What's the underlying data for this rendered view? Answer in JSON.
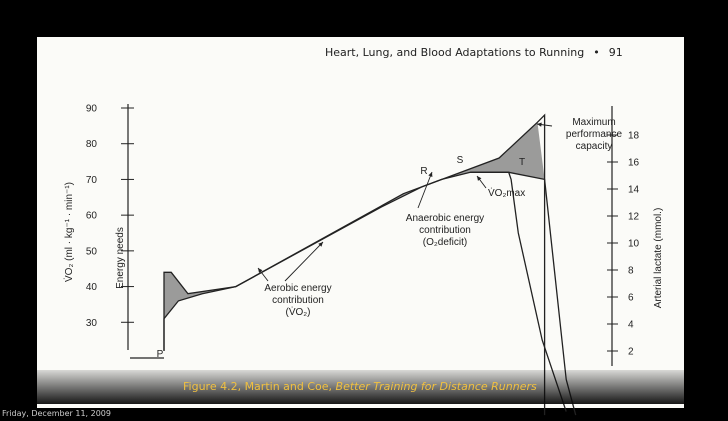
{
  "header": {
    "title": "Heart, Lung, and Blood Adaptations to Running",
    "bullet": "•",
    "page_number": "91"
  },
  "caption": {
    "prefix": "Figure 4.2, Martin and Coe, ",
    "book": "Better Training for Distance Runners"
  },
  "footer": {
    "date": "Friday, December 11, 2009"
  },
  "colors": {
    "slide_background": "#000000",
    "page": "#fbfbf8",
    "ink": "#222222",
    "shading": "#8a8a8a",
    "caption_text": "#f0c040"
  },
  "chart_data": {
    "type": "line",
    "y_left": {
      "label": "V̇O₂ (ml · kg⁻¹ · min⁻¹)",
      "ticks": [
        30,
        40,
        50,
        60,
        70,
        80,
        90
      ],
      "range": [
        20,
        90
      ]
    },
    "y_left_secondary_label": "Energy needs",
    "y_right": {
      "label": "Arterial lactate (mmol.)",
      "ticks": [
        2,
        4,
        6,
        8,
        10,
        12,
        14,
        16,
        18
      ],
      "range": [
        0,
        20
      ]
    },
    "series": [
      {
        "values": [
          [
            0,
            22
          ],
          [
            0,
            44
          ],
          [
            1.5,
            44
          ],
          [
            5,
            38
          ],
          [
            15,
            40
          ],
          [
            50,
            66
          ],
          [
            60,
            71
          ],
          [
            70,
            76
          ],
          [
            78,
            86
          ],
          [
            79.5,
            88
          ],
          [
            79.5,
            4
          ]
        ]
      },
      {
        "values": [
          [
            0,
            22
          ],
          [
            0,
            31
          ],
          [
            3,
            36
          ],
          [
            8,
            38
          ],
          [
            15,
            40
          ],
          [
            45,
            62
          ],
          [
            54,
            68
          ],
          [
            58,
            70
          ],
          [
            64,
            72
          ],
          [
            72,
            72
          ],
          [
            79.5,
            70
          ],
          [
            84,
            14
          ],
          [
            86,
            4
          ]
        ]
      },
      {
        "values": [
          [
            64,
            72
          ],
          [
            72,
            72
          ],
          [
            72.5,
            70
          ],
          [
            74,
            55
          ],
          [
            79,
            25
          ],
          [
            84,
            5
          ]
        ]
      }
    ],
    "annotations": [
      {
        "lines": [
          "Maximum",
          "performance",
          "capacity"
        ]
      },
      {
        "text": "R"
      },
      {
        "text": "S"
      },
      {
        "text": "T"
      },
      {
        "text": "V̇O₂max"
      },
      {
        "lines": [
          "Anaerobic energy",
          "contribution",
          "(O₂deficit)"
        ]
      },
      {
        "lines": [
          "Aerobic energy",
          "contribution",
          "(V̇O₂)"
        ]
      },
      {
        "text": "P"
      }
    ]
  }
}
